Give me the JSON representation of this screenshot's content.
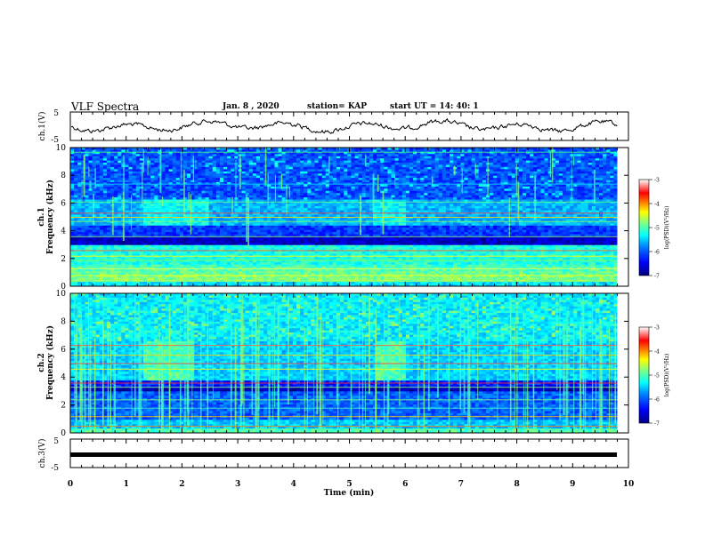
{
  "header": {
    "title": "VLF Spectra",
    "date": "Jan. 8 , 2020",
    "station": "station= KAP",
    "start": "start UT = 14: 40: 1"
  },
  "colorbar": {
    "label": "log(PSD)(V²/Hz)",
    "ticks": [
      "-3",
      "-4",
      "-5",
      "-6",
      "-7"
    ],
    "colors": [
      "#00007f",
      "#0000ff",
      "#0080ff",
      "#00ffff",
      "#80ff80",
      "#ffff00",
      "#ff8000",
      "#ff0000",
      "#ffffff"
    ]
  },
  "chart_data": [
    {
      "type": "line",
      "ylabel": "ch.1(V)",
      "ylim": [
        -5,
        5
      ],
      "yticks": [
        "5",
        "-5"
      ],
      "xlim": [
        0,
        10
      ],
      "series_style": {
        "color": "#000000"
      }
    },
    {
      "type": "heatmap",
      "ylabel_channel": "ch.1",
      "ylabel": "Frequency (kHz)",
      "ylim": [
        0,
        10
      ],
      "yticks": [
        "0",
        "2",
        "4",
        "6",
        "8",
        "10"
      ],
      "xlim": [
        0,
        9.8
      ]
    },
    {
      "type": "heatmap",
      "ylabel_channel": "ch.2",
      "ylabel": "Frequency (kHz)",
      "ylim": [
        0,
        10
      ],
      "yticks": [
        "0",
        "2",
        "4",
        "6",
        "8",
        "10"
      ],
      "xlim": [
        0,
        9.8
      ]
    },
    {
      "type": "line",
      "ylabel": "ch.3(V)",
      "ylim": [
        -5,
        5
      ],
      "yticks": [
        "5",
        "-5"
      ],
      "xlim": [
        0,
        10
      ],
      "xlabel": "Time (min)",
      "xticks": [
        "0",
        "1",
        "2",
        "3",
        "4",
        "5",
        "6",
        "7",
        "8",
        "9",
        "10"
      ]
    }
  ]
}
